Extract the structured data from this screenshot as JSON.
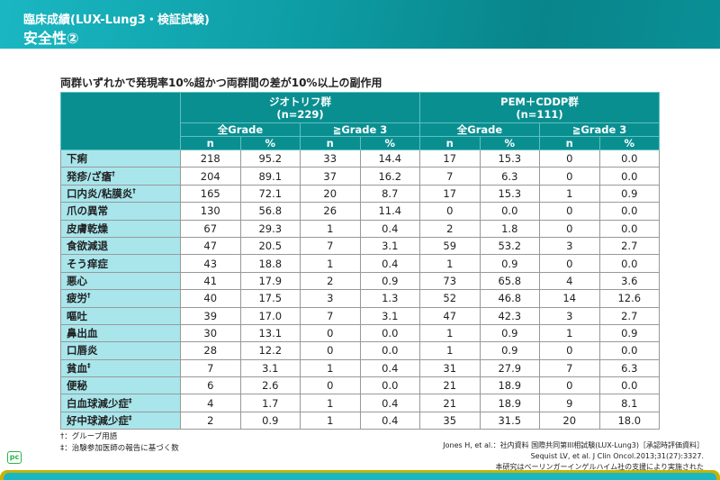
{
  "header": {
    "title": "臨床成績(LUX-Lung3・検証試験)",
    "subtitle": "安全性②"
  },
  "table_title": "両群いずれかで発現率10%超かつ両群間の差が10%以上の副作用",
  "groups": [
    {
      "name": "ジオトリフ群",
      "n": "(n=229)"
    },
    {
      "name": "PEM＋CDDP群",
      "n": "(n=111)"
    }
  ],
  "grades": [
    "全Grade",
    "≧Grade 3",
    "全Grade",
    "≧Grade 3"
  ],
  "cols": [
    "n",
    "%",
    "n",
    "%",
    "n",
    "%",
    "n",
    "%"
  ],
  "rows": [
    {
      "label": "下痢",
      "mark": "",
      "v": [
        "218",
        "95.2",
        "33",
        "14.4",
        "17",
        "15.3",
        "0",
        "0.0"
      ]
    },
    {
      "label": "発疹/ざ瘡",
      "mark": "†",
      "v": [
        "204",
        "89.1",
        "37",
        "16.2",
        "7",
        "6.3",
        "0",
        "0.0"
      ]
    },
    {
      "label": "口内炎/粘膜炎",
      "mark": "†",
      "v": [
        "165",
        "72.1",
        "20",
        "8.7",
        "17",
        "15.3",
        "1",
        "0.9"
      ]
    },
    {
      "label": "爪の異常",
      "mark": "",
      "v": [
        "130",
        "56.8",
        "26",
        "11.4",
        "0",
        "0.0",
        "0",
        "0.0"
      ]
    },
    {
      "label": "皮膚乾燥",
      "mark": "",
      "v": [
        "67",
        "29.3",
        "1",
        "0.4",
        "2",
        "1.8",
        "0",
        "0.0"
      ]
    },
    {
      "label": "食欲減退",
      "mark": "",
      "v": [
        "47",
        "20.5",
        "7",
        "3.1",
        "59",
        "53.2",
        "3",
        "2.7"
      ]
    },
    {
      "label": "そう痒症",
      "mark": "",
      "v": [
        "43",
        "18.8",
        "1",
        "0.4",
        "1",
        "0.9",
        "0",
        "0.0"
      ]
    },
    {
      "label": "悪心",
      "mark": "",
      "v": [
        "41",
        "17.9",
        "2",
        "0.9",
        "73",
        "65.8",
        "4",
        "3.6"
      ]
    },
    {
      "label": "疲労",
      "mark": "†",
      "v": [
        "40",
        "17.5",
        "3",
        "1.3",
        "52",
        "46.8",
        "14",
        "12.6"
      ]
    },
    {
      "label": "嘔吐",
      "mark": "",
      "v": [
        "39",
        "17.0",
        "7",
        "3.1",
        "47",
        "42.3",
        "3",
        "2.7"
      ]
    },
    {
      "label": "鼻出血",
      "mark": "",
      "v": [
        "30",
        "13.1",
        "0",
        "0.0",
        "1",
        "0.9",
        "1",
        "0.9"
      ]
    },
    {
      "label": "口唇炎",
      "mark": "",
      "v": [
        "28",
        "12.2",
        "0",
        "0.0",
        "1",
        "0.9",
        "0",
        "0.0"
      ]
    },
    {
      "label": "貧血",
      "mark": "‡",
      "v": [
        "7",
        "3.1",
        "1",
        "0.4",
        "31",
        "27.9",
        "7",
        "6.3"
      ]
    },
    {
      "label": "便秘",
      "mark": "",
      "v": [
        "6",
        "2.6",
        "0",
        "0.0",
        "21",
        "18.9",
        "0",
        "0.0"
      ]
    },
    {
      "label": "白血球減少症",
      "mark": "‡",
      "v": [
        "4",
        "1.7",
        "1",
        "0.4",
        "21",
        "18.9",
        "9",
        "8.1"
      ]
    },
    {
      "label": "好中球減少症",
      "mark": "‡",
      "v": [
        "2",
        "0.9",
        "1",
        "0.4",
        "35",
        "31.5",
        "20",
        "18.0"
      ]
    }
  ],
  "notes": [
    "†：グループ用語",
    "‡：治験参加医師の報告に基づく数"
  ],
  "refs": [
    "Jones H, et al.：社内資料 国際共同第III相試験(LUX-Lung3)［承認時評価資料］",
    "Sequist LV, et al. J Clin Oncol.2013;31(27):3327.",
    "本研究はベーリンガーインゲルハイム社の支援により実施された"
  ],
  "logo": "pc"
}
